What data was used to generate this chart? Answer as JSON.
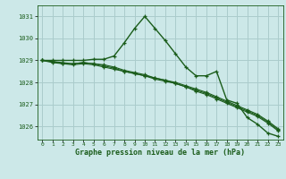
{
  "title": "Graphe pression niveau de la mer (hPa)",
  "background_color": "#cce8e8",
  "grid_color": "#aacccc",
  "line_color": "#1a5c1a",
  "x_ticks": [
    0,
    1,
    2,
    3,
    4,
    5,
    6,
    7,
    8,
    9,
    10,
    11,
    12,
    13,
    14,
    15,
    16,
    17,
    18,
    19,
    20,
    21,
    22,
    23
  ],
  "ylim": [
    1025.4,
    1031.5
  ],
  "yticks": [
    1026,
    1027,
    1028,
    1029,
    1030,
    1031
  ],
  "series": [
    [
      1029.0,
      1029.0,
      1029.0,
      1029.0,
      1029.0,
      1029.05,
      1029.05,
      1029.2,
      1029.8,
      1030.45,
      1031.0,
      1030.45,
      1029.9,
      1029.3,
      1028.7,
      1028.3,
      1028.3,
      1028.5,
      1027.2,
      1027.05,
      1026.4,
      1026.1,
      1025.7,
      1025.55
    ],
    [
      1029.0,
      1028.95,
      1028.85,
      1028.85,
      1028.9,
      1028.85,
      1028.75,
      1028.65,
      1028.5,
      1028.4,
      1028.3,
      1028.2,
      1028.1,
      1027.95,
      1027.8,
      1027.65,
      1027.5,
      1027.3,
      1027.1,
      1026.9,
      1026.7,
      1026.5,
      1026.2,
      1025.85
    ],
    [
      1029.0,
      1028.95,
      1028.9,
      1028.85,
      1028.9,
      1028.85,
      1028.8,
      1028.7,
      1028.55,
      1028.45,
      1028.35,
      1028.2,
      1028.1,
      1028.0,
      1027.85,
      1027.7,
      1027.55,
      1027.35,
      1027.15,
      1026.95,
      1026.75,
      1026.55,
      1026.25,
      1025.9
    ],
    [
      1029.0,
      1028.9,
      1028.85,
      1028.8,
      1028.85,
      1028.8,
      1028.7,
      1028.6,
      1028.5,
      1028.4,
      1028.3,
      1028.15,
      1028.05,
      1027.95,
      1027.8,
      1027.6,
      1027.45,
      1027.25,
      1027.05,
      1026.85,
      1026.65,
      1026.45,
      1026.15,
      1025.8
    ]
  ]
}
